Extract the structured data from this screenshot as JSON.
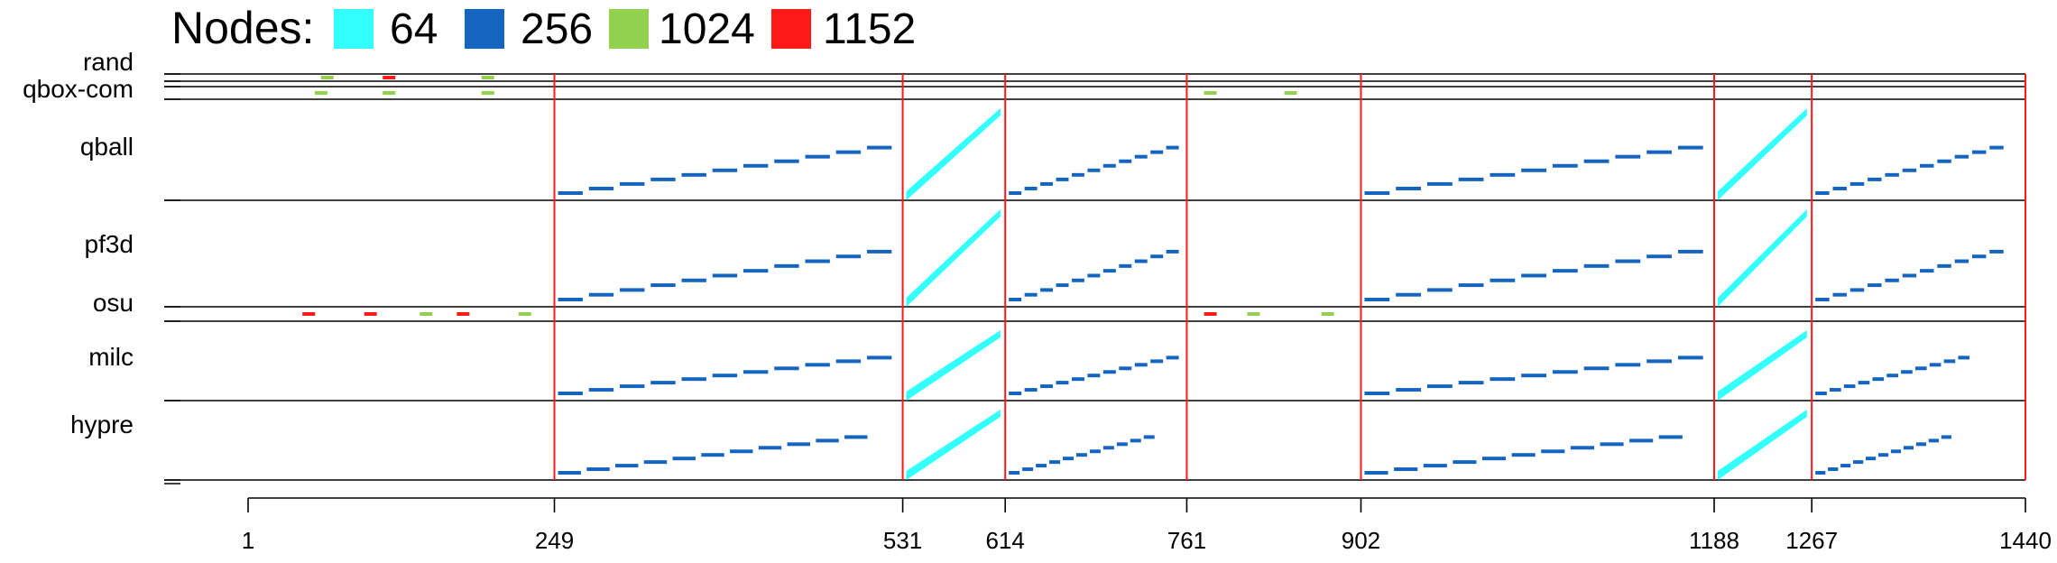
{
  "chart_data": {
    "type": "scatter",
    "title": "",
    "xlabel": "",
    "ylabel": "",
    "legend": {
      "title": "Nodes:",
      "placement": "top-left",
      "entries": [
        {
          "label": "64",
          "color": "#33ffff"
        },
        {
          "label": "256",
          "color": "#1565c0"
        },
        {
          "label": "1024",
          "color": "#92d050"
        },
        {
          "label": "1152",
          "color": "#ff1a1a"
        }
      ]
    },
    "x_ticks": [
      1,
      249,
      531,
      614,
      761,
      902,
      1188,
      1267,
      1440
    ],
    "xlim": [
      1,
      1440
    ],
    "boundaries": [
      249,
      531,
      614,
      761,
      902,
      1188,
      1267,
      1440
    ],
    "rows": [
      "rand",
      "qbox-com",
      "qball",
      "pf3d",
      "osu",
      "milc",
      "hypre"
    ],
    "series": [
      {
        "row": "qball",
        "nodes": 256,
        "x_start": 249,
        "x_end": 530
      },
      {
        "row": "qball",
        "nodes": 64,
        "x_start": 531,
        "x_end": 613
      },
      {
        "row": "qball",
        "nodes": 256,
        "x_start": 614,
        "x_end": 760
      },
      {
        "row": "qball",
        "nodes": 256,
        "x_start": 902,
        "x_end": 1187
      },
      {
        "row": "qball",
        "nodes": 64,
        "x_start": 1188,
        "x_end": 1266
      },
      {
        "row": "qball",
        "nodes": 256,
        "x_start": 1267,
        "x_end": 1428
      },
      {
        "row": "pf3d",
        "nodes": 256,
        "x_start": 249,
        "x_end": 530
      },
      {
        "row": "pf3d",
        "nodes": 64,
        "x_start": 531,
        "x_end": 613
      },
      {
        "row": "pf3d",
        "nodes": 256,
        "x_start": 614,
        "x_end": 760
      },
      {
        "row": "pf3d",
        "nodes": 256,
        "x_start": 902,
        "x_end": 1187
      },
      {
        "row": "pf3d",
        "nodes": 64,
        "x_start": 1188,
        "x_end": 1266
      },
      {
        "row": "pf3d",
        "nodes": 256,
        "x_start": 1267,
        "x_end": 1428
      },
      {
        "row": "milc",
        "nodes": 256,
        "x_start": 249,
        "x_end": 530
      },
      {
        "row": "milc",
        "nodes": 64,
        "x_start": 531,
        "x_end": 613
      },
      {
        "row": "milc",
        "nodes": 256,
        "x_start": 614,
        "x_end": 760
      },
      {
        "row": "milc",
        "nodes": 256,
        "x_start": 902,
        "x_end": 1187
      },
      {
        "row": "milc",
        "nodes": 64,
        "x_start": 1188,
        "x_end": 1266
      },
      {
        "row": "milc",
        "nodes": 256,
        "x_start": 1267,
        "x_end": 1400
      },
      {
        "row": "hypre",
        "nodes": 256,
        "x_start": 249,
        "x_end": 510
      },
      {
        "row": "hypre",
        "nodes": 64,
        "x_start": 531,
        "x_end": 613
      },
      {
        "row": "hypre",
        "nodes": 256,
        "x_start": 614,
        "x_end": 740
      },
      {
        "row": "hypre",
        "nodes": 256,
        "x_start": 902,
        "x_end": 1170
      },
      {
        "row": "hypre",
        "nodes": 64,
        "x_start": 1188,
        "x_end": 1266
      },
      {
        "row": "hypre",
        "nodes": 256,
        "x_start": 1267,
        "x_end": 1385
      }
    ]
  }
}
